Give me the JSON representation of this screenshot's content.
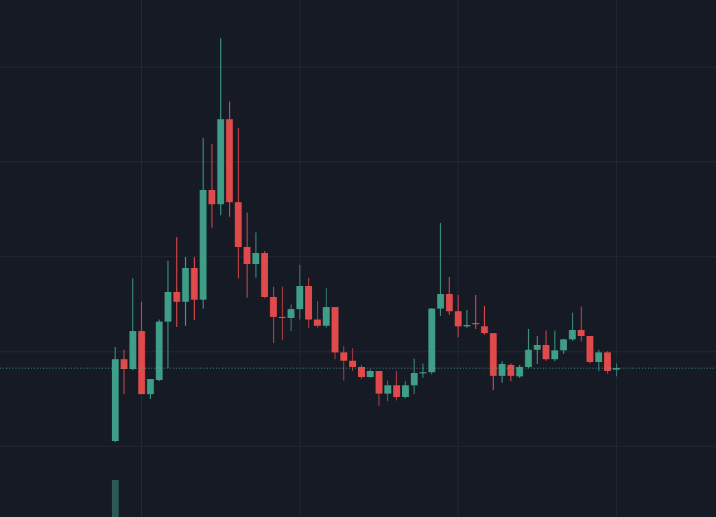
{
  "chart_data": {
    "type": "candlestick",
    "categories": [
      null,
      null,
      null,
      null,
      null,
      null,
      null,
      null,
      null,
      null,
      null,
      null,
      null,
      null,
      null,
      null,
      null,
      null,
      null,
      null,
      null,
      null,
      null,
      null,
      null,
      null,
      null,
      null,
      null,
      null,
      null,
      null,
      null,
      null,
      null,
      null,
      null,
      null,
      null,
      null,
      null,
      null,
      null,
      null,
      null,
      null,
      null,
      null,
      null,
      null,
      null,
      null,
      null,
      null,
      null,
      null,
      null,
      null
    ],
    "open": [
      111,
      230,
      216,
      271,
      179,
      200,
      285,
      328,
      314,
      363,
      317,
      477,
      456,
      580,
      459,
      394,
      369,
      385,
      321,
      292,
      290,
      303,
      337,
      288,
      279,
      306,
      240,
      228,
      219,
      204,
      213,
      180,
      192,
      175,
      192,
      210,
      211,
      304,
      325,
      300,
      278,
      283,
      278,
      268,
      206,
      222,
      205,
      219,
      244,
      251,
      230,
      243,
      259,
      273,
      264,
      226,
      240,
      215
    ],
    "high": [
      248,
      244,
      348,
      314,
      201,
      288,
      374,
      408,
      379,
      379,
      553,
      544,
      698,
      606,
      567,
      444,
      415,
      388,
      336,
      336,
      310,
      368,
      349,
      315,
      334,
      306,
      249,
      246,
      222,
      216,
      213,
      199,
      213,
      198,
      231,
      224,
      305,
      429,
      350,
      324,
      302,
      324,
      308,
      268,
      227,
      224,
      222,
      274,
      264,
      272,
      272,
      260,
      298,
      307,
      264,
      244,
      242,
      224
    ],
    "low": [
      109,
      179,
      214,
      179,
      172,
      198,
      217,
      277,
      279,
      287,
      304,
      422,
      440,
      438,
      348,
      320,
      349,
      319,
      254,
      258,
      271,
      288,
      276,
      276,
      276,
      230,
      199,
      213,
      201,
      203,
      162,
      169,
      170,
      173,
      179,
      203,
      208,
      293,
      295,
      262,
      276,
      274,
      266,
      185,
      196,
      198,
      203,
      217,
      223,
      228,
      227,
      238,
      257,
      256,
      224,
      213,
      209,
      205
    ],
    "close": [
      230,
      216,
      271,
      179,
      201,
      285,
      328,
      314,
      363,
      317,
      477,
      456,
      580,
      459,
      394,
      369,
      385,
      321,
      292,
      290,
      303,
      337,
      288,
      279,
      306,
      240,
      228,
      219,
      204,
      213,
      180,
      192,
      175,
      192,
      210,
      211,
      304,
      325,
      300,
      278,
      280,
      281,
      268,
      206,
      223,
      206,
      219,
      244,
      251,
      230,
      243,
      259,
      273,
      264,
      226,
      240,
      213,
      217
    ],
    "volume": [
      54,
      null,
      null,
      null,
      null,
      null,
      null,
      null,
      null,
      null,
      null,
      null,
      null,
      null,
      null,
      null,
      null,
      null,
      null,
      null,
      null,
      null,
      null,
      null,
      null,
      null,
      null,
      null,
      null,
      null,
      null,
      null,
      null,
      null,
      null,
      null,
      null,
      null,
      null,
      null,
      null,
      null,
      null,
      null,
      null,
      null,
      null,
      null,
      null,
      null,
      null,
      null,
      null,
      null,
      null,
      null,
      null,
      null
    ],
    "ylim": [
      0,
      754
    ],
    "yticks": [
      656,
      518,
      380,
      241,
      103
    ],
    "xticks": [
      3,
      21,
      39,
      57
    ],
    "last_price": 217,
    "grid": true,
    "up_color": "#3f9e87",
    "down_color": "#e04a4a",
    "volume_color": "#2a5a53",
    "grid_color": "#272c39",
    "price_line_color": "#4fb0a0"
  }
}
